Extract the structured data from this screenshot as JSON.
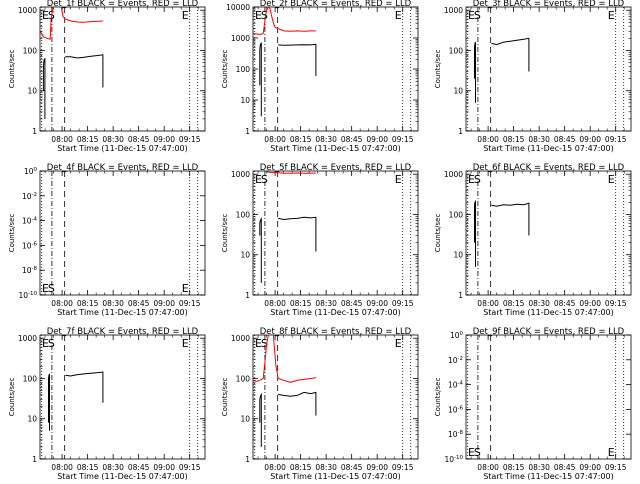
{
  "title_suffix": "BLACK = Events, RED = LLD",
  "xlabel": "Start Time (11-Dec-15 07:47:00)",
  "ylabel": "Counts/sec",
  "x_tick_labels": [
    "08:00",
    "08:15",
    "08:30",
    "08:45",
    "09:00",
    "09:15"
  ],
  "colors": {
    "events": "#000000",
    "lld": "#ff0000",
    "axes": "#000000"
  },
  "markers": {
    "E1": "E",
    "S": "S",
    "E2": "E",
    "line_styles": {
      "E1": "dotted",
      "S": "dash-dot",
      "D": "dashed",
      "E2": "dotted"
    }
  },
  "chart_data": [
    {
      "title": "Det_1f",
      "type": "line",
      "ylog": true,
      "x_unit": "minutes after 07:47:00",
      "xlim": [
        0,
        97
      ],
      "yticks": [
        1,
        10,
        100,
        1000
      ],
      "ytick_labels": [
        "1",
        "10",
        "100",
        "1000"
      ],
      "ylim": [
        1,
        1200
      ],
      "marker_x": {
        "E1": 1,
        "S": 7,
        "D": 14.5,
        "E2": 88
      },
      "series": [
        {
          "name": "Events",
          "color": "#000000",
          "segments": [
            [
              [
                2.0,
                10
              ],
              [
                2.0,
                40
              ],
              [
                2.3,
                55
              ],
              [
                2.6,
                60
              ],
              [
                2.9,
                62
              ],
              [
                2.9,
                3
              ],
              [
                2.9,
                2
              ]
            ],
            [
              [
                14.8,
                70
              ],
              [
                18,
                70
              ],
              [
                22,
                65
              ],
              [
                26,
                68
              ],
              [
                30,
                72
              ],
              [
                34,
                75
              ],
              [
                37,
                78
              ],
              [
                37,
                12
              ]
            ]
          ]
        },
        {
          "name": "LLD",
          "color": "#ff0000",
          "segments": [
            [
              [
                0,
                300
              ],
              [
                2,
                220
              ],
              [
                4,
                200
              ],
              [
                6,
                190
              ],
              [
                6.5,
                600
              ],
              [
                7.5,
                1100
              ],
              [
                8.0,
                1200
              ]
            ],
            [
              [
                12.5,
                1200
              ],
              [
                13.5,
                700
              ],
              [
                14.8,
                600
              ],
              [
                18,
                540
              ],
              [
                22,
                510
              ],
              [
                26,
                500
              ],
              [
                30,
                520
              ],
              [
                34,
                530
              ],
              [
                37,
                540
              ]
            ]
          ]
        }
      ]
    },
    {
      "title": "Det_2f",
      "type": "line",
      "ylog": true,
      "x_unit": "minutes after 07:47:00",
      "xlim": [
        0,
        97
      ],
      "yticks": [
        1,
        10,
        100,
        1000,
        10000
      ],
      "ytick_labels": [
        "1",
        "10",
        "100",
        "1000",
        "10000"
      ],
      "ylim": [
        1,
        10000
      ],
      "marker_x": {
        "E1": 1,
        "S": 7,
        "D": 14.5,
        "E2": 88
      },
      "series": [
        {
          "name": "Events",
          "color": "#000000",
          "segments": [
            [
              [
                4.0,
                30
              ],
              [
                4.0,
                400
              ],
              [
                4.3,
                600
              ],
              [
                4.6,
                650
              ],
              [
                4.9,
                680
              ],
              [
                4.9,
                5
              ],
              [
                4.9,
                3
              ]
            ],
            [
              [
                14.8,
                600
              ],
              [
                18,
                580
              ],
              [
                22,
                590
              ],
              [
                26,
                600
              ],
              [
                30,
                610
              ],
              [
                34,
                600
              ],
              [
                37,
                620
              ],
              [
                37,
                60
              ]
            ]
          ]
        },
        {
          "name": "LLD",
          "color": "#ff0000",
          "segments": [
            [
              [
                0,
                1400
              ],
              [
                2,
                1350
              ],
              [
                4,
                1300
              ],
              [
                6,
                1400
              ],
              [
                7,
                3500
              ],
              [
                8,
                8000
              ],
              [
                9,
                9800
              ],
              [
                10,
                9000
              ],
              [
                11,
                5000
              ],
              [
                12,
                3000
              ],
              [
                13,
                2200
              ],
              [
                14.8,
                2000
              ],
              [
                18,
                1700
              ],
              [
                22,
                1650
              ],
              [
                26,
                1700
              ],
              [
                30,
                1650
              ],
              [
                34,
                1700
              ],
              [
                37,
                1700
              ]
            ]
          ]
        }
      ]
    },
    {
      "title": "Det_3f",
      "type": "line",
      "ylog": true,
      "x_unit": "minutes after 07:47:00",
      "xlim": [
        0,
        97
      ],
      "yticks": [
        1,
        10,
        100,
        1000
      ],
      "ytick_labels": [
        "1",
        "10",
        "100",
        "1000"
      ],
      "ylim": [
        1,
        1200
      ],
      "marker_x": {
        "E1": 1,
        "S": 7,
        "D": 14.5,
        "E2": 88
      },
      "series": [
        {
          "name": "Events",
          "color": "#000000",
          "segments": [
            [
              [
                5.0,
                20
              ],
              [
                5.0,
                120
              ],
              [
                5.3,
                150
              ],
              [
                5.6,
                160
              ],
              [
                5.6,
                10
              ],
              [
                5.6,
                5
              ]
            ],
            [
              [
                15,
                150
              ],
              [
                18,
                140
              ],
              [
                22,
                160
              ],
              [
                26,
                170
              ],
              [
                30,
                180
              ],
              [
                34,
                190
              ],
              [
                37,
                200
              ],
              [
                37,
                30
              ]
            ]
          ]
        }
      ]
    },
    {
      "title": "Det_4f",
      "type": "line",
      "ylog": true,
      "x_unit": "minutes after 07:47:00",
      "xlim": [
        0,
        97
      ],
      "yticks": [
        1e-10,
        1e-08,
        1e-06,
        0.0001,
        0.01,
        1
      ],
      "ytick_labels": [
        "10^-10",
        "10^-8",
        "10^-6",
        "10^-4",
        "10^-2",
        "10^0"
      ],
      "ylim": [
        1e-10,
        1
      ],
      "marker_x": {
        "E1": 1,
        "S": 7,
        "D": 14.5,
        "E2": 88
      },
      "series": []
    },
    {
      "title": "Det_5f",
      "type": "line",
      "ylog": true,
      "x_unit": "minutes after 07:47:00",
      "xlim": [
        0,
        97
      ],
      "yticks": [
        1,
        10,
        100,
        1000
      ],
      "ytick_labels": [
        "1",
        "10",
        "100",
        "1000"
      ],
      "ylim": [
        1,
        1200
      ],
      "marker_x": {
        "E1": 1,
        "S": 7,
        "D": 14.5,
        "E2": 88
      },
      "series": [
        {
          "name": "Events",
          "color": "#000000",
          "segments": [
            [
              [
                4.0,
                30
              ],
              [
                4.0,
                60
              ],
              [
                4.3,
                70
              ],
              [
                4.6,
                75
              ],
              [
                4.9,
                78
              ],
              [
                4.9,
                3
              ],
              [
                4.9,
                2
              ]
            ],
            [
              [
                14.8,
                80
              ],
              [
                18,
                75
              ],
              [
                22,
                78
              ],
              [
                26,
                80
              ],
              [
                30,
                85
              ],
              [
                34,
                82
              ],
              [
                37,
                85
              ],
              [
                37,
                12
              ]
            ]
          ]
        },
        {
          "name": "LLD",
          "color": "#ff0000",
          "segments": [
            [
              [
                8,
                1150
              ],
              [
                10,
                1100
              ],
              [
                14.8,
                1080
              ],
              [
                18,
                1050
              ],
              [
                22,
                1060
              ],
              [
                26,
                1070
              ],
              [
                30,
                1050
              ],
              [
                34,
                1060
              ],
              [
                37,
                1070
              ]
            ]
          ]
        }
      ]
    },
    {
      "title": "Det_6f",
      "type": "line",
      "ylog": true,
      "x_unit": "minutes after 07:47:00",
      "xlim": [
        0,
        97
      ],
      "yticks": [
        1,
        10,
        100,
        1000
      ],
      "ytick_labels": [
        "1",
        "10",
        "100",
        "1000"
      ],
      "ylim": [
        1,
        1200
      ],
      "marker_x": {
        "E1": 1,
        "S": 7,
        "D": 14.5,
        "E2": 88
      },
      "series": [
        {
          "name": "Events",
          "color": "#000000",
          "segments": [
            [
              [
                5.0,
                20
              ],
              [
                5.0,
                180
              ],
              [
                5.3,
                200
              ],
              [
                5.6,
                210
              ],
              [
                5.6,
                10
              ],
              [
                5.6,
                5
              ]
            ],
            [
              [
                15,
                170
              ],
              [
                18,
                160
              ],
              [
                22,
                175
              ],
              [
                26,
                170
              ],
              [
                30,
                180
              ],
              [
                34,
                175
              ],
              [
                37,
                190
              ],
              [
                37,
                30
              ]
            ]
          ]
        }
      ]
    },
    {
      "title": "Det_7f",
      "type": "line",
      "ylog": true,
      "x_unit": "minutes after 07:47:00",
      "xlim": [
        0,
        97
      ],
      "yticks": [
        1,
        10,
        100,
        1000
      ],
      "ytick_labels": [
        "1",
        "10",
        "100",
        "1000"
      ],
      "ylim": [
        1,
        1200
      ],
      "marker_x": {
        "E1": 1,
        "S": 7,
        "D": 14.5,
        "E2": 88
      },
      "series": [
        {
          "name": "Events",
          "color": "#000000",
          "segments": [
            [
              [
                5.0,
                8
              ],
              [
                5.0,
                100
              ],
              [
                5.3,
                120
              ],
              [
                5.6,
                130
              ],
              [
                5.6,
                10
              ],
              [
                5.6,
                5
              ]
            ],
            [
              [
                15,
                120
              ],
              [
                18,
                115
              ],
              [
                22,
                125
              ],
              [
                26,
                130
              ],
              [
                30,
                135
              ],
              [
                34,
                140
              ],
              [
                37,
                145
              ],
              [
                37,
                25
              ]
            ]
          ]
        }
      ]
    },
    {
      "title": "Det_8f",
      "type": "line",
      "ylog": true,
      "x_unit": "minutes after 07:47:00",
      "xlim": [
        0,
        97
      ],
      "yticks": [
        1,
        10,
        100,
        1000
      ],
      "ytick_labels": [
        "1",
        "10",
        "100",
        "1000"
      ],
      "ylim": [
        1,
        1200
      ],
      "marker_x": {
        "E1": 1,
        "S": 7,
        "D": 14.5,
        "E2": 88
      },
      "series": [
        {
          "name": "Events",
          "color": "#000000",
          "segments": [
            [
              [
                4.0,
                8
              ],
              [
                4.0,
                30
              ],
              [
                4.3,
                35
              ],
              [
                4.6,
                38
              ],
              [
                4.9,
                40
              ],
              [
                4.9,
                3
              ],
              [
                4.9,
                2
              ]
            ],
            [
              [
                14.8,
                40
              ],
              [
                18,
                38
              ],
              [
                22,
                36
              ],
              [
                26,
                38
              ],
              [
                30,
                45
              ],
              [
                34,
                42
              ],
              [
                37,
                45
              ],
              [
                37,
                12
              ]
            ]
          ]
        },
        {
          "name": "LLD",
          "color": "#ff0000",
          "segments": [
            [
              [
                0,
                90
              ],
              [
                2,
                85
              ],
              [
                4,
                90
              ],
              [
                6,
                100
              ],
              [
                7,
                250
              ],
              [
                8,
                700
              ],
              [
                9,
                1200
              ]
            ],
            [
              [
                12,
                1200
              ],
              [
                12.5,
                600
              ],
              [
                13.5,
                200
              ],
              [
                14.8,
                100
              ],
              [
                18,
                90
              ],
              [
                22,
                80
              ],
              [
                26,
                90
              ],
              [
                30,
                95
              ],
              [
                34,
                100
              ],
              [
                37,
                105
              ]
            ]
          ]
        }
      ]
    },
    {
      "title": "Det_9f",
      "type": "line",
      "ylog": true,
      "x_unit": "minutes after 07:47:00",
      "xlim": [
        0,
        97
      ],
      "yticks": [
        1e-10,
        1e-08,
        1e-06,
        0.0001,
        0.01,
        1
      ],
      "ytick_labels": [
        "10^-10",
        "10^-8",
        "10^-6",
        "10^-4",
        "10^-2",
        "10^0"
      ],
      "ylim": [
        1e-10,
        1
      ],
      "marker_x": {
        "E1": 1,
        "S": 7,
        "D": 14.5,
        "E2": 88
      },
      "series": []
    }
  ]
}
